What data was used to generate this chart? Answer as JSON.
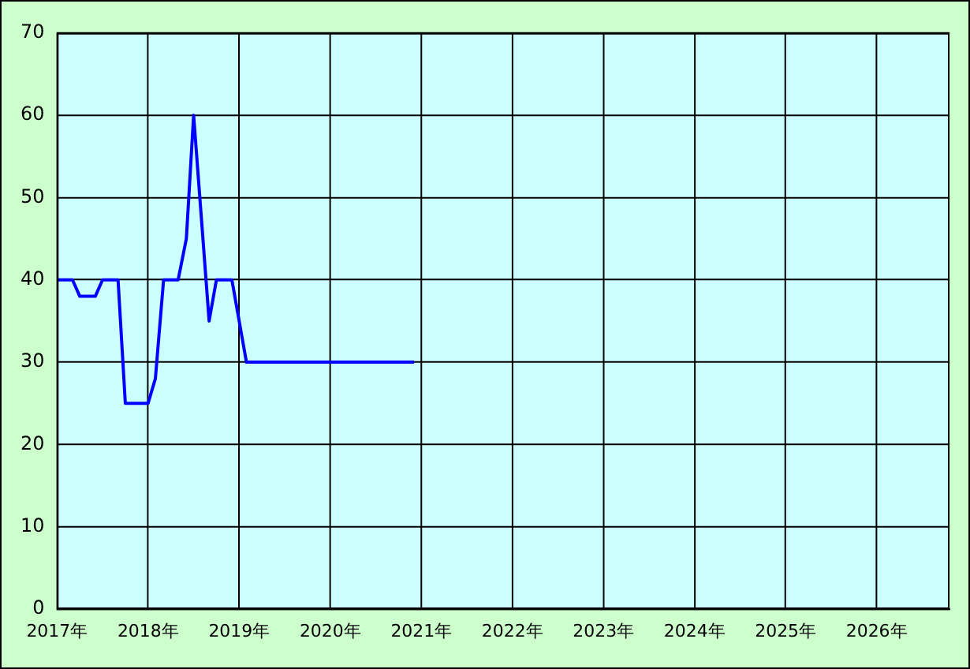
{
  "chart_data": {
    "type": "line",
    "x": [
      2017.0,
      2017.17,
      2017.25,
      2017.42,
      2017.5,
      2017.67,
      2017.75,
      2018.0,
      2018.08,
      2018.17,
      2018.33,
      2018.42,
      2018.5,
      2018.67,
      2018.75,
      2018.92,
      2019.08,
      2020.92
    ],
    "values": [
      40,
      40,
      38,
      38,
      40,
      40,
      25,
      25,
      28,
      40,
      40,
      45,
      60,
      35,
      40,
      40,
      30,
      30
    ],
    "color": "#0000ff",
    "xlim": [
      2017,
      2026.8
    ],
    "xticks": [
      {
        "value": 2017,
        "label": "2017年"
      },
      {
        "value": 2018,
        "label": "2018年"
      },
      {
        "value": 2019,
        "label": "2019年"
      },
      {
        "value": 2020,
        "label": "2020年"
      },
      {
        "value": 2021,
        "label": "2021年"
      },
      {
        "value": 2022,
        "label": "2022年"
      },
      {
        "value": 2023,
        "label": "2023年"
      },
      {
        "value": 2024,
        "label": "2024年"
      },
      {
        "value": 2025,
        "label": "2025年"
      },
      {
        "value": 2026,
        "label": "2026年"
      }
    ],
    "ylim": [
      0,
      70
    ],
    "yticks": [
      0,
      10,
      20,
      30,
      40,
      50,
      60,
      70
    ],
    "grid": true,
    "line_style": "solid",
    "marker": "none",
    "legend": false
  }
}
